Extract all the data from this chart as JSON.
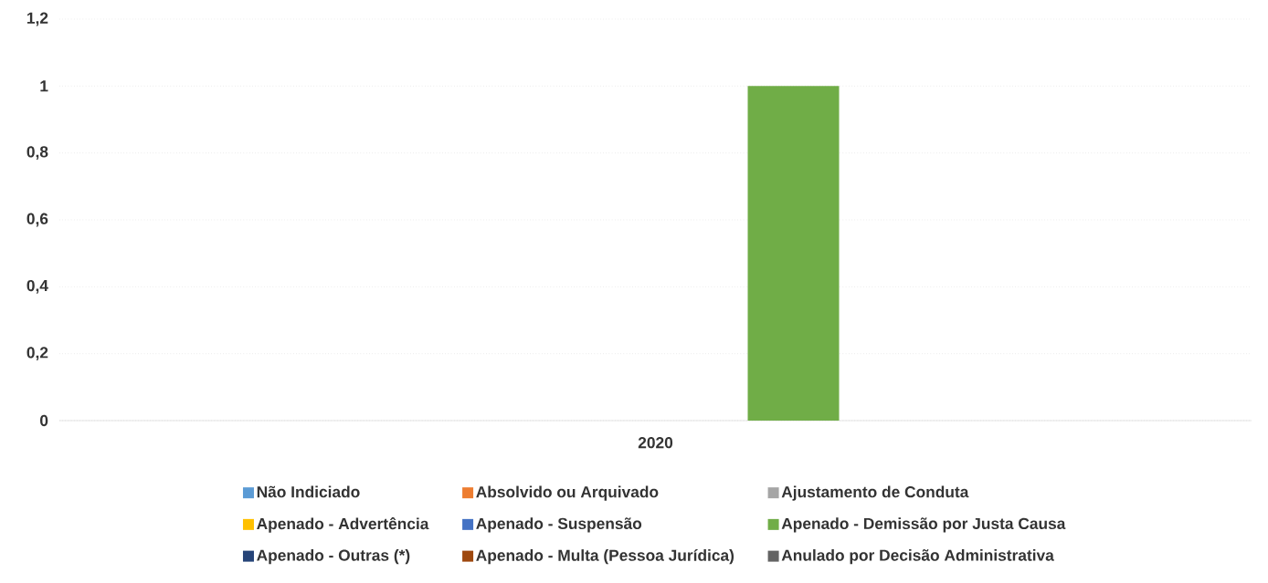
{
  "chart_data": {
    "type": "bar",
    "categories": [
      "2020"
    ],
    "series": [
      {
        "name": "Não Indiciado",
        "color": "#5b9bd5",
        "values": [
          0
        ]
      },
      {
        "name": "Absolvido ou Arquivado",
        "color": "#ed7d31",
        "values": [
          0
        ]
      },
      {
        "name": "Ajustamento de Conduta",
        "color": "#a5a5a5",
        "values": [
          0
        ]
      },
      {
        "name": "Apenado - Advertência",
        "color": "#ffc000",
        "values": [
          0
        ]
      },
      {
        "name": "Apenado - Suspensão",
        "color": "#4472c4",
        "values": [
          0
        ]
      },
      {
        "name": "Apenado - Demissão por Justa Causa",
        "color": "#70ad47",
        "values": [
          1
        ]
      },
      {
        "name": "Apenado - Outras (*)",
        "color": "#264478",
        "values": [
          0
        ]
      },
      {
        "name": "Apenado - Multa (Pessoa Jurídica)",
        "color": "#9e480e",
        "values": [
          0
        ]
      },
      {
        "name": "Anulado por Decisão Administrativa",
        "color": "#636363",
        "values": [
          0
        ]
      }
    ],
    "ylim": [
      0,
      1.2
    ],
    "yticks": [
      0,
      {
        "value": 0.2,
        "label": "0,2"
      },
      {
        "value": 0.4,
        "label": "0,4"
      },
      {
        "value": 0.6,
        "label": "0,6"
      },
      {
        "value": 0.8,
        "label": "0,8"
      },
      1,
      {
        "value": 1.2,
        "label": "1,2"
      }
    ],
    "grid": "y",
    "legend": "bottom"
  }
}
